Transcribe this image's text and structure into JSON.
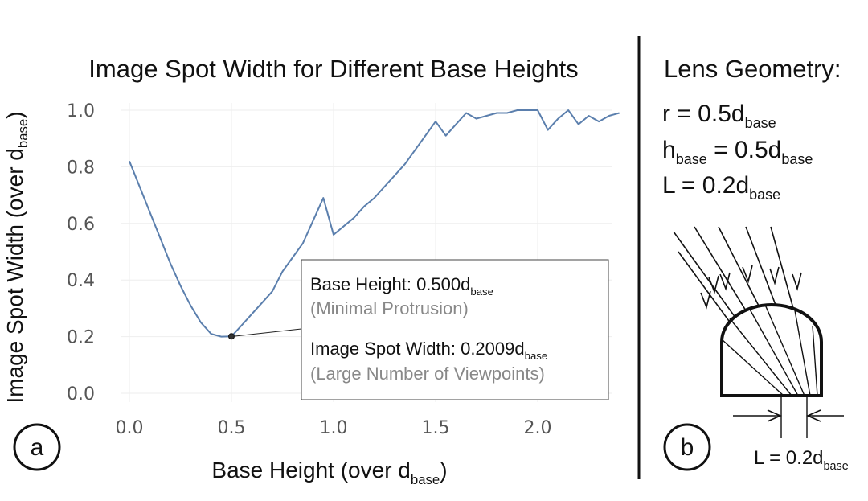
{
  "chart_data": {
    "type": "line",
    "title": "Image Spot Width for Different Base Heights",
    "xlabel": "Base Height (over d",
    "xlabel_sub": "base",
    "xlabel_close": ")",
    "ylabel": "Image Spot Width (over d",
    "ylabel_sub": "base",
    "ylabel_close": ")",
    "xlim": [
      -0.05,
      2.4
    ],
    "ylim": [
      -0.04,
      1.07
    ],
    "xticks": [
      0.0,
      0.5,
      1.0,
      1.5,
      2.0
    ],
    "xtick_labels": [
      "0.0",
      "0.5",
      "1.0",
      "1.5",
      "2.0"
    ],
    "yticks": [
      0.0,
      0.2,
      0.4,
      0.6,
      0.8,
      1.0
    ],
    "ytick_labels": [
      "0.0",
      "0.2",
      "0.4",
      "0.6",
      "0.8",
      "1.0"
    ],
    "grid": true,
    "series": [
      {
        "color": "#5b7fad",
        "x": [
          0.0,
          0.05,
          0.1,
          0.15,
          0.2,
          0.25,
          0.3,
          0.35,
          0.4,
          0.45,
          0.5,
          0.55,
          0.6,
          0.65,
          0.7,
          0.75,
          0.8,
          0.85,
          0.9,
          0.95,
          1.0,
          1.05,
          1.1,
          1.15,
          1.2,
          1.25,
          1.3,
          1.35,
          1.4,
          1.45,
          1.5,
          1.55,
          1.6,
          1.65,
          1.7,
          1.75,
          1.8,
          1.85,
          1.9,
          1.95,
          2.0,
          2.05,
          2.1,
          2.15,
          2.2,
          2.25,
          2.3,
          2.35,
          2.4
        ],
        "y": [
          0.82,
          0.73,
          0.64,
          0.55,
          0.46,
          0.38,
          0.31,
          0.25,
          0.21,
          0.2,
          0.2009,
          0.24,
          0.28,
          0.32,
          0.36,
          0.43,
          0.48,
          0.53,
          0.61,
          0.69,
          0.56,
          0.59,
          0.62,
          0.66,
          0.69,
          0.73,
          0.77,
          0.81,
          0.86,
          0.91,
          0.96,
          0.91,
          0.95,
          0.99,
          0.97,
          0.98,
          0.99,
          0.99,
          1.0,
          1.0,
          1.0,
          0.93,
          0.97,
          1.0,
          0.95,
          0.98,
          0.96,
          0.98,
          0.99
        ]
      }
    ],
    "highlight": {
      "x": 0.5,
      "y": 0.2009
    },
    "annotation": {
      "line1_main": "Base Height: 0.500d",
      "line1_sub": "base",
      "line2": "(Minimal Protrusion)",
      "line3_main": "Image Spot Width: 0.2009d",
      "line3_sub": "base",
      "line4": "(Large Number of Viewpoints)",
      "muted_color": "#888888"
    }
  },
  "panel_labels": {
    "a": "a",
    "b": "b"
  },
  "lens": {
    "title": "Lens Geometry:",
    "r_main": "r = 0.5d",
    "r_sub": "base",
    "h_main": "h",
    "h_sub": "base",
    "h_eq": " = 0.5d",
    "h_sub2": "base",
    "L_main": "L = 0.2d",
    "L_sub": "base",
    "dim_main": "L = 0.2d",
    "dim_sub": "base"
  }
}
